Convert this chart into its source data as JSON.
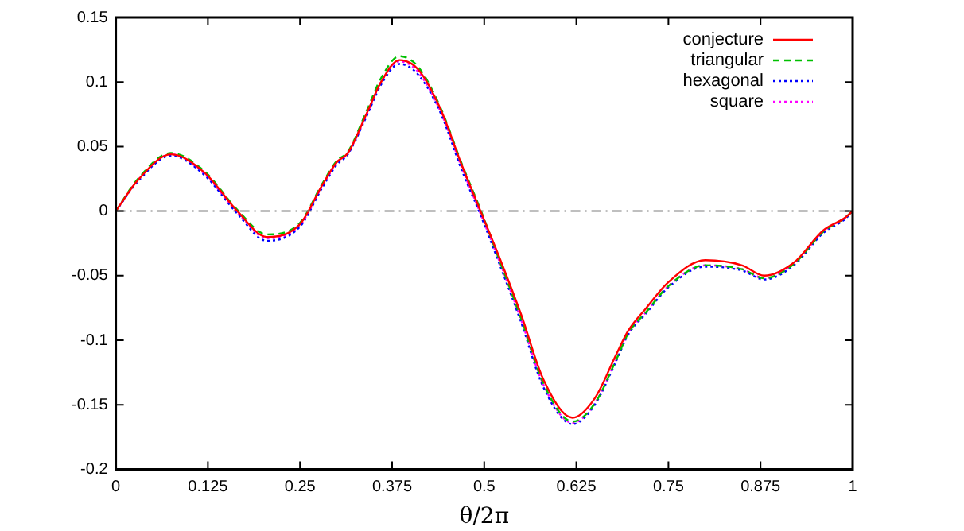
{
  "chart_data": {
    "type": "line",
    "xlabel": "θ/2π",
    "xlim": [
      0,
      1
    ],
    "xticks": [
      0,
      0.125,
      0.25,
      0.375,
      0.5,
      0.625,
      0.75,
      0.875,
      1
    ],
    "ylim": [
      -0.2,
      0.15
    ],
    "yticks": [
      -0.2,
      -0.15,
      -0.1,
      -0.05,
      0,
      0.05,
      0.1,
      0.15
    ],
    "grid": false,
    "legend": "top right",
    "marker": "none",
    "x": [
      0,
      0.03,
      0.075,
      0.12,
      0.165,
      0.205,
      0.25,
      0.28,
      0.3,
      0.315,
      0.34,
      0.36,
      0.385,
      0.41,
      0.44,
      0.47,
      0.495,
      0.52,
      0.55,
      0.58,
      0.62,
      0.65,
      0.68,
      0.695,
      0.72,
      0.75,
      0.8,
      0.85,
      0.88,
      0.92,
      0.96,
      0.99,
      1
    ],
    "ref_lines": [
      {
        "axis": "y",
        "value": 0,
        "color": "#808080"
      }
    ],
    "series": [
      {
        "name": "conjecture",
        "color": "#ff0000",
        "line_style": "solid",
        "values": [
          0,
          0.024,
          0.044,
          0.03,
          0,
          -0.02,
          -0.01,
          0.02,
          0.038,
          0.045,
          0.075,
          0.1,
          0.117,
          0.11,
          0.08,
          0.035,
          0,
          -0.035,
          -0.08,
          -0.13,
          -0.16,
          -0.145,
          -0.11,
          -0.093,
          -0.075,
          -0.055,
          -0.038,
          -0.042,
          -0.05,
          -0.04,
          -0.015,
          -0.005,
          0
        ]
      },
      {
        "name": "triangular",
        "color": "#00c000",
        "line_style": "dashed",
        "values": [
          0,
          0.025,
          0.045,
          0.031,
          0.001,
          -0.018,
          -0.009,
          0.021,
          0.039,
          0.046,
          0.077,
          0.103,
          0.12,
          0.112,
          0.081,
          0.036,
          0.001,
          -0.037,
          -0.083,
          -0.133,
          -0.163,
          -0.149,
          -0.114,
          -0.095,
          -0.078,
          -0.058,
          -0.042,
          -0.045,
          -0.052,
          -0.041,
          -0.016,
          -0.005,
          0
        ]
      },
      {
        "name": "hexagonal",
        "color": "#0000ff",
        "line_style": "dotted",
        "values": [
          0,
          0.023,
          0.043,
          0.028,
          -0.002,
          -0.023,
          -0.012,
          0.018,
          0.036,
          0.044,
          0.073,
          0.098,
          0.114,
          0.106,
          0.077,
          0.031,
          -0.003,
          -0.04,
          -0.086,
          -0.136,
          -0.165,
          -0.15,
          -0.115,
          -0.096,
          -0.079,
          -0.059,
          -0.043,
          -0.046,
          -0.053,
          -0.042,
          -0.017,
          -0.006,
          0
        ]
      },
      {
        "name": "square",
        "color": "#ff00ff",
        "line_style": "dotted",
        "values": [
          0,
          0.024,
          0.044,
          0.029,
          -0.001,
          -0.021,
          -0.011,
          0.019,
          0.037,
          0.045,
          0.074,
          0.1,
          0.116,
          0.108,
          0.078,
          0.033,
          -0.002,
          -0.038,
          -0.084,
          -0.134,
          -0.164,
          -0.149,
          -0.114,
          -0.095,
          -0.078,
          -0.058,
          -0.042,
          -0.045,
          -0.052,
          -0.041,
          -0.016,
          -0.005,
          0
        ]
      }
    ]
  }
}
